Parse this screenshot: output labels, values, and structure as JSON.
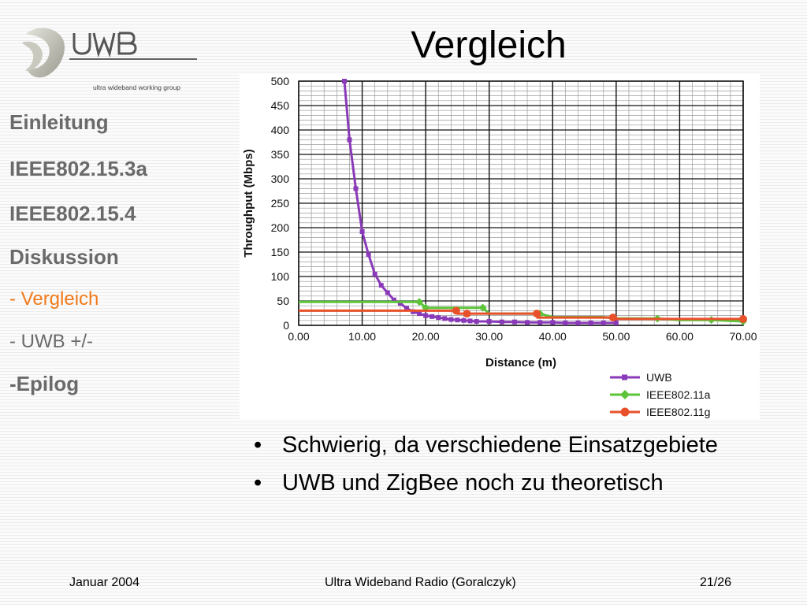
{
  "slide": {
    "title": "Vergleich",
    "logo_brand": "UWB",
    "logo_subtitle": "ultra wideband working group"
  },
  "nav": {
    "items": [
      {
        "label": "Einleitung",
        "style": "main"
      },
      {
        "label": "IEEE802.15.3a",
        "style": "main"
      },
      {
        "label": "IEEE802.15.4",
        "style": "main"
      },
      {
        "label": "Diskussion",
        "style": "main"
      },
      {
        "label": "- Vergleich",
        "style": "sub-active"
      },
      {
        "label": "- UWB +/-",
        "style": "sub"
      },
      {
        "label": "-Epilog",
        "style": "main"
      }
    ]
  },
  "chart_data": {
    "type": "line",
    "xlabel": "Distance (m)",
    "ylabel": "Throughput (Mbps)",
    "xlim": [
      0,
      70
    ],
    "ylim": [
      0,
      500
    ],
    "x_ticks": [
      "0.00",
      "10.00",
      "20.00",
      "30.00",
      "40.00",
      "50.00",
      "60.00",
      "70.00"
    ],
    "y_ticks": [
      "0",
      "50",
      "100",
      "150",
      "200",
      "250",
      "300",
      "350",
      "400",
      "450",
      "500"
    ],
    "grid": true,
    "legend_position": "bottom-right",
    "series": [
      {
        "name": "UWB",
        "color": "#8a3ab9",
        "x": [
          7.2,
          8,
          9,
          10,
          11,
          12,
          13,
          14,
          15,
          16,
          17,
          18,
          19,
          20,
          21,
          22,
          23,
          24,
          25,
          26,
          27,
          28,
          30,
          32,
          34,
          36,
          38,
          40,
          42,
          44,
          46,
          48,
          50
        ],
        "y": [
          500,
          380,
          280,
          192,
          145,
          105,
          82,
          67,
          52,
          45,
          35,
          28,
          24,
          20,
          18,
          16,
          14,
          12,
          11,
          10,
          9,
          8,
          8,
          7,
          7,
          6,
          6,
          6,
          5,
          5,
          5,
          5,
          5
        ]
      },
      {
        "name": "IEEE802.11a",
        "color": "#5cc43a",
        "x": [
          0,
          19,
          20,
          29,
          30,
          38,
          40,
          48,
          50,
          56.5,
          60,
          65,
          70
        ],
        "y": [
          48,
          48,
          36,
          36,
          24,
          24,
          17,
          17,
          14,
          14,
          11,
          11,
          8
        ],
        "markers_x": [
          19,
          20,
          29,
          38,
          56.5,
          65,
          70
        ]
      },
      {
        "name": "IEEE802.11g",
        "color": "#e8502a",
        "x": [
          0,
          24.8,
          25,
          37.5,
          37.6,
          50,
          50.1,
          70
        ],
        "y": [
          30,
          30,
          24,
          24,
          16,
          16,
          13,
          13
        ],
        "markers_x": [
          24.8,
          26.5,
          37.5,
          49.5,
          70
        ]
      }
    ]
  },
  "bullets": [
    "Schwierig, da verschiedene Einsatzgebiete",
    "UWB und ZigBee noch zu theoretisch"
  ],
  "bullet_glyph": "•",
  "footer": {
    "left": "Januar 2004",
    "center": "Ultra Wideband Radio  (Goralczyk)",
    "right": "21/26"
  }
}
